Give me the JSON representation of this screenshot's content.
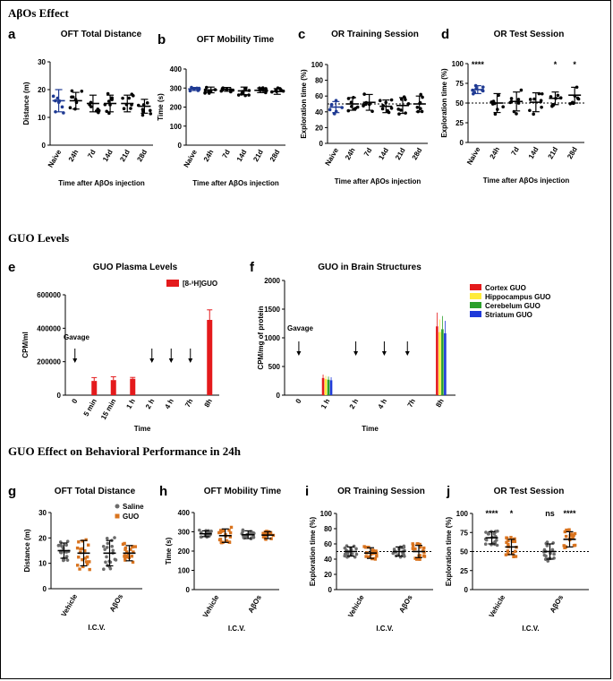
{
  "sections": {
    "s1": "AβOs Effect",
    "s2": "GUO Levels",
    "s3": "GUO Effect on Behavioral Performance in 24h"
  },
  "colors": {
    "naive": "#1f3a93",
    "black": "#000000",
    "saline": "#6b6b6b",
    "guo": "#d9731e",
    "red": "#e41a1c",
    "yellow": "#ffeb3b",
    "green": "#2ca02c",
    "blue": "#1f3ad9"
  },
  "chart_data": [
    {
      "letter": "a",
      "type": "scatter",
      "title": "OFT Total Distance",
      "ylabel": "Distance (m)",
      "xlabel": "Time after AβOs injection",
      "ylim": [
        0,
        30
      ],
      "yticks": [
        0,
        10,
        20,
        30
      ],
      "categories": [
        "Naive",
        "24h",
        "7d",
        "14d",
        "21d",
        "28d"
      ],
      "means": [
        16,
        16,
        15,
        15,
        15,
        14
      ],
      "sd": [
        4,
        3,
        3,
        3,
        3,
        2.5
      ],
      "first_color": "naive"
    },
    {
      "letter": "b",
      "type": "scatter",
      "title": "OFT Mobility Time",
      "ylabel": "Time (s)",
      "xlabel": "Time after AβOs injection",
      "ylim": [
        0,
        400
      ],
      "yticks": [
        0,
        100,
        200,
        300,
        400
      ],
      "categories": [
        "Naive",
        "24h",
        "7d",
        "14d",
        "21d",
        "28d"
      ],
      "means": [
        295,
        290,
        293,
        285,
        288,
        282
      ],
      "sd": [
        8,
        15,
        10,
        20,
        12,
        15
      ],
      "first_color": "naive"
    },
    {
      "letter": "c",
      "type": "scatter",
      "title": "OR Training Session",
      "ylabel": "Exploration time (%)",
      "xlabel": "Time after AβOs injection",
      "ylim": [
        0,
        100
      ],
      "yticks": [
        0,
        20,
        40,
        60,
        80,
        100
      ],
      "refline": 50,
      "categories": [
        "Naive",
        "24h",
        "7d",
        "14d",
        "21d",
        "28d"
      ],
      "means": [
        46,
        50,
        52,
        47,
        48,
        50
      ],
      "sd": [
        7,
        8,
        10,
        8,
        10,
        10
      ],
      "first_color": "naive"
    },
    {
      "letter": "d",
      "type": "scatter",
      "title": "OR Test Session",
      "ylabel": "Exploration time (%)",
      "xlabel": "Time after AβOs injection",
      "ylim": [
        0,
        100
      ],
      "yticks": [
        0,
        25,
        50,
        75,
        100
      ],
      "refline": 50,
      "categories": [
        "Naive",
        "24h",
        "7d",
        "14d",
        "21d",
        "28d"
      ],
      "means": [
        67,
        50,
        52,
        51,
        56,
        60
      ],
      "sd": [
        5,
        12,
        12,
        12,
        8,
        10
      ],
      "significance": [
        "****",
        "",
        "",
        "",
        "*",
        "*"
      ],
      "first_color": "naive"
    },
    {
      "letter": "e",
      "type": "bar",
      "title": "GUO Plasma Levels",
      "ylabel": "CPM/ml",
      "xlabel": "Time",
      "ylim": [
        0,
        600000
      ],
      "yticks": [
        "0",
        "200000",
        "400000",
        "600000"
      ],
      "ytick_values": [
        0,
        200000,
        400000,
        600000
      ],
      "categories": [
        "0",
        "5 min",
        "15 min",
        "1 h",
        "2 h",
        "4 h",
        "7h",
        "8h"
      ],
      "values": [
        0,
        85000,
        90000,
        98000,
        0,
        0,
        0,
        450000
      ],
      "errors": [
        0,
        20000,
        20000,
        8000,
        0,
        0,
        0,
        60000
      ],
      "legend": "[8-³H]GUO",
      "annotation": "Gavage",
      "arrows_at": [
        "0",
        "2 h",
        "4 h",
        "7h"
      ]
    },
    {
      "letter": "f",
      "type": "bar",
      "title": "GUO in Brain Structures",
      "ylabel": "CPM/mg of protein",
      "xlabel": "Time",
      "ylim": [
        0,
        2000
      ],
      "yticks": [
        0,
        500,
        1000,
        1500,
        2000
      ],
      "categories": [
        "0",
        "1 h",
        "2 h",
        "4 h",
        "7h",
        "8h"
      ],
      "annotation": "Gavage",
      "arrows_at": [
        "0",
        "2 h",
        "4 h",
        "7h"
      ],
      "series": [
        {
          "name": "Cortex GUO",
          "color": "red",
          "values": [
            0,
            300,
            0,
            0,
            0,
            1200
          ]
        },
        {
          "name": "Hippocampus GUO",
          "color": "yellow",
          "values": [
            0,
            280,
            0,
            0,
            0,
            1100
          ]
        },
        {
          "name": "Cerebelum GUO",
          "color": "green",
          "values": [
            0,
            270,
            0,
            0,
            0,
            1150
          ]
        },
        {
          "name": "Striatum GUO",
          "color": "blue",
          "values": [
            0,
            260,
            0,
            0,
            0,
            1080
          ]
        }
      ]
    },
    {
      "letter": "g",
      "type": "scatter",
      "title": "OFT Total Distance",
      "ylabel": "Distance (m)",
      "xlabel": "I.C.V.",
      "ylim": [
        0,
        30
      ],
      "yticks": [
        0,
        10,
        20,
        30
      ],
      "categories": [
        "Vehicle",
        "AβOs"
      ],
      "legend": [
        "Saline",
        "GUO"
      ],
      "means": [
        [
          15,
          14
        ],
        [
          14,
          14
        ]
      ],
      "sd": [
        [
          3,
          5
        ],
        [
          5,
          3
        ]
      ]
    },
    {
      "letter": "h",
      "type": "scatter",
      "title": "OFT Mobility Time",
      "ylabel": "Time (s)",
      "xlabel": "I.C.V.",
      "ylim": [
        0,
        400
      ],
      "yticks": [
        0,
        100,
        200,
        300,
        400
      ],
      "categories": [
        "Vehicle",
        "AβOs"
      ],
      "means": [
        [
          290,
          280
        ],
        [
          285,
          283
        ]
      ],
      "sd": [
        [
          15,
          35
        ],
        [
          20,
          18
        ]
      ]
    },
    {
      "letter": "i",
      "type": "scatter",
      "title": "OR Training Session",
      "ylabel": "Exploration time (%)",
      "xlabel": "I.C.V.",
      "ylim": [
        0,
        100
      ],
      "yticks": [
        0,
        20,
        40,
        60,
        80,
        100
      ],
      "refline": 50,
      "categories": [
        "Vehicle",
        "AβOs"
      ],
      "means": [
        [
          50,
          48
        ],
        [
          50,
          50
        ]
      ],
      "sd": [
        [
          6,
          7
        ],
        [
          6,
          8
        ]
      ]
    },
    {
      "letter": "j",
      "type": "scatter",
      "title": "OR Test Session",
      "ylabel": "Exploration time (%)",
      "xlabel": "I.C.V.",
      "ylim": [
        0,
        100
      ],
      "yticks": [
        0,
        25,
        50,
        75,
        100
      ],
      "refline": 50,
      "categories": [
        "Vehicle",
        "AβOs"
      ],
      "means": [
        [
          68,
          56
        ],
        [
          50,
          66
        ]
      ],
      "sd": [
        [
          8,
          10
        ],
        [
          10,
          10
        ]
      ],
      "significance": [
        [
          "****",
          "*"
        ],
        [
          "ns",
          "****"
        ]
      ]
    }
  ]
}
